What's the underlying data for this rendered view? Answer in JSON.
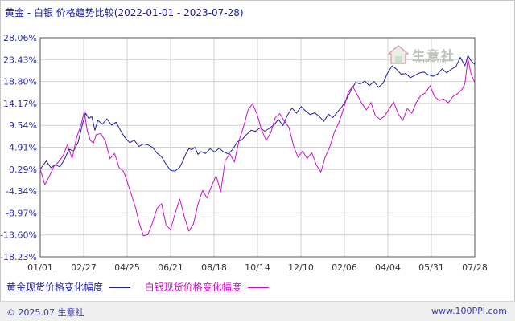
{
  "title": "黄金 - 白银  价格趋势比较(2022-01-01 - 2023-07-28)",
  "watermark": {
    "name": "生意社",
    "url": "100PPI.COM"
  },
  "footer": {
    "copyright": "© 2025.07 生意社",
    "site": "www.100PPI.com"
  },
  "colors": {
    "gold": "#1f1fa0",
    "silver": "#cc10cc",
    "axis": "#555555",
    "grid": "#d0d0d0",
    "tick_text": "#2b2bb0"
  },
  "chart_data": {
    "type": "line",
    "title": "黄金 - 白银  价格趋势比较(2022-01-01 - 2023-07-28)",
    "xlabel": "",
    "ylabel": "",
    "y_ticks": [
      "28.06%",
      "23.43%",
      "18.80%",
      "14.17%",
      "9.54%",
      "4.91%",
      "0.29%",
      "-4.34%",
      "-8.97%",
      "-13.60%",
      "-18.23%"
    ],
    "ylim": [
      -18.23,
      28.06
    ],
    "x_ticks": [
      "01/01",
      "02/27",
      "04/25",
      "06/21",
      "08/18",
      "10/14",
      "12/10",
      "02/06",
      "04/04",
      "05/31",
      "07/28"
    ],
    "xlim": [
      0,
      573
    ],
    "grid": true,
    "legend_position": "bottom-left",
    "series": [
      {
        "name": "黄金现货价格变化幅度",
        "x": [
          0,
          8,
          14,
          20,
          26,
          32,
          38,
          44,
          50,
          56,
          60,
          64,
          68,
          72,
          76,
          82,
          88,
          94,
          100,
          106,
          112,
          118,
          124,
          130,
          136,
          142,
          148,
          154,
          160,
          166,
          172,
          178,
          184,
          188,
          192,
          196,
          200,
          204,
          208,
          212,
          218,
          224,
          230,
          236,
          242,
          248,
          254,
          260,
          266,
          272,
          278,
          284,
          290,
          296,
          302,
          308,
          314,
          320,
          326,
          332,
          338,
          344,
          350,
          356,
          362,
          368,
          374,
          380,
          386,
          392,
          398,
          404,
          410,
          416,
          422,
          428,
          434,
          440,
          446,
          452,
          458,
          464,
          470,
          476,
          482,
          488,
          494,
          500,
          506,
          512,
          518,
          524,
          530,
          536,
          542,
          548,
          554,
          560,
          564,
          568,
          573
        ],
        "y": [
          0.3,
          2.0,
          0.6,
          1.2,
          0.8,
          2.4,
          4.5,
          4.1,
          6.0,
          10.0,
          12.1,
          11.0,
          11.4,
          8.5,
          10.6,
          9.8,
          10.9,
          9.6,
          10.2,
          8.4,
          6.9,
          5.9,
          6.4,
          5.1,
          5.6,
          5.4,
          4.9,
          3.7,
          2.9,
          1.3,
          0.0,
          -0.1,
          0.7,
          2.0,
          3.5,
          4.6,
          4.4,
          4.9,
          3.4,
          4.0,
          3.6,
          4.6,
          3.9,
          4.7,
          3.9,
          3.5,
          4.5,
          6.1,
          6.5,
          7.6,
          8.5,
          8.3,
          9.0,
          8.3,
          8.9,
          9.6,
          10.8,
          9.5,
          11.7,
          13.2,
          12.1,
          13.5,
          12.6,
          11.8,
          12.2,
          11.4,
          10.4,
          11.9,
          11.2,
          12.4,
          13.5,
          15.1,
          17.0,
          18.6,
          18.3,
          18.9,
          17.9,
          18.8,
          17.6,
          18.4,
          20.6,
          22.1,
          21.4,
          20.3,
          20.5,
          19.6,
          20.1,
          20.6,
          20.8,
          20.2,
          19.9,
          20.4,
          21.5,
          20.6,
          21.4,
          21.9,
          23.9,
          22.1,
          24.3,
          23.2,
          22.4
        ]
      },
      {
        "name": "白银现货价格变化幅度",
        "x": [
          0,
          6,
          12,
          18,
          24,
          30,
          36,
          42,
          48,
          54,
          58,
          62,
          66,
          70,
          74,
          80,
          86,
          92,
          98,
          104,
          110,
          114,
          118,
          122,
          126,
          130,
          136,
          142,
          148,
          154,
          160,
          166,
          172,
          178,
          184,
          190,
          196,
          202,
          208,
          214,
          220,
          226,
          232,
          238,
          244,
          250,
          256,
          262,
          268,
          274,
          280,
          286,
          292,
          298,
          304,
          310,
          316,
          322,
          328,
          334,
          340,
          346,
          352,
          358,
          364,
          370,
          376,
          382,
          388,
          394,
          400,
          406,
          412,
          418,
          424,
          430,
          436,
          442,
          448,
          454,
          460,
          466,
          472,
          478,
          484,
          490,
          496,
          502,
          508,
          514,
          520,
          526,
          532,
          538,
          544,
          550,
          556,
          560,
          564,
          568,
          573
        ],
        "y": [
          0.3,
          -3.0,
          -1.2,
          0.9,
          1.8,
          3.1,
          5.5,
          2.5,
          7.0,
          9.8,
          12.5,
          8.4,
          6.4,
          5.8,
          7.6,
          7.8,
          6.2,
          2.5,
          3.6,
          0.6,
          -0.2,
          -2.0,
          -4.0,
          -6.0,
          -8.0,
          -10.8,
          -13.8,
          -13.5,
          -11.0,
          -8.0,
          -7.0,
          -11.5,
          -12.5,
          -9.0,
          -6.0,
          -9.8,
          -12.8,
          -11.3,
          -7.1,
          -4.2,
          -5.8,
          -3.2,
          -1.1,
          -4.5,
          2.1,
          3.5,
          1.8,
          6.2,
          9.2,
          12.8,
          14.1,
          11.9,
          8.5,
          6.4,
          8.0,
          11.2,
          12.0,
          10.4,
          9.1,
          5.2,
          2.8,
          4.1,
          2.5,
          3.8,
          1.2,
          -0.3,
          2.9,
          5.1,
          8.2,
          10.2,
          13.1,
          16.5,
          17.8,
          16.0,
          14.2,
          12.8,
          14.4,
          11.6,
          10.8,
          11.5,
          13.0,
          14.5,
          12.0,
          10.6,
          13.1,
          12.1,
          14.4,
          15.9,
          16.4,
          17.9,
          15.6,
          14.8,
          15.1,
          14.3,
          15.6,
          16.2,
          17.1,
          18.3,
          23.6,
          20.4,
          18.6
        ]
      }
    ]
  }
}
